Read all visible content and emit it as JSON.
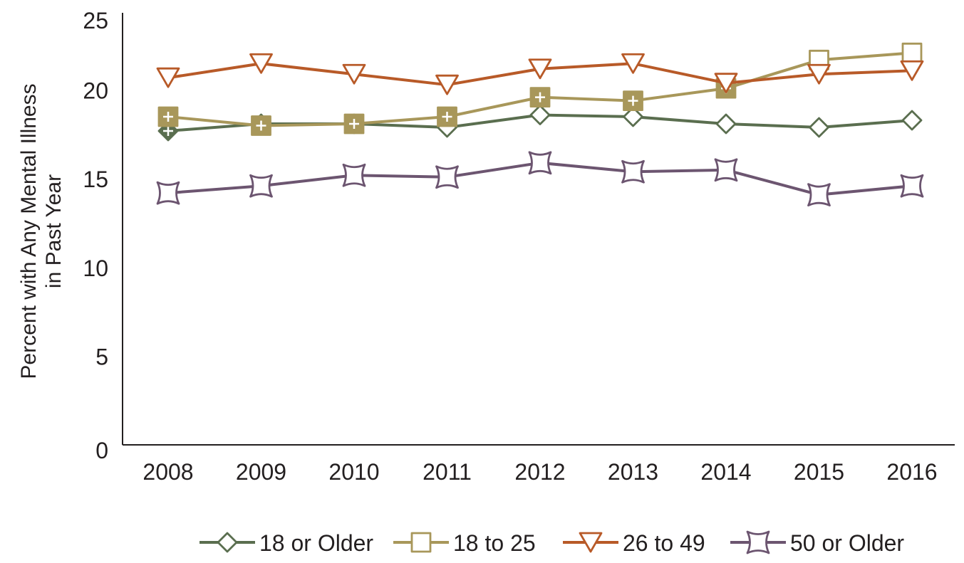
{
  "chart_data": {
    "type": "line",
    "title": "",
    "xlabel": "",
    "ylabel": [
      "Percent with Any Mental Illness",
      "in Past Year"
    ],
    "x": [
      "2008",
      "2009",
      "2010",
      "2011",
      "2012",
      "2013",
      "2014",
      "2015",
      "2016"
    ],
    "ylim": [
      0,
      25
    ],
    "yticks": [
      "0",
      "5",
      "10",
      "15",
      "20",
      "25"
    ],
    "grid": false,
    "legend_position": "bottom",
    "series": [
      {
        "name": "18 or Older",
        "color": "#5a6e4f",
        "marker": "diamond",
        "values": [
          17.7,
          18.1,
          18.1,
          17.9,
          18.6,
          18.5,
          18.1,
          17.9,
          18.3
        ],
        "significant": [
          true,
          false,
          false,
          false,
          false,
          false,
          false,
          false,
          false
        ]
      },
      {
        "name": "18 to 25",
        "color": "#a8975a",
        "marker": "square",
        "values": [
          18.5,
          18.0,
          18.1,
          18.5,
          19.6,
          19.4,
          20.1,
          21.7,
          22.1
        ],
        "significant": [
          true,
          true,
          true,
          true,
          true,
          true,
          true,
          false,
          false
        ]
      },
      {
        "name": "26 to 49",
        "color": "#b85a28",
        "marker": "triangle-down",
        "values": [
          20.7,
          21.5,
          20.9,
          20.3,
          21.2,
          21.5,
          20.4,
          20.9,
          21.1
        ],
        "significant": [
          false,
          false,
          false,
          false,
          false,
          false,
          false,
          false,
          false
        ]
      },
      {
        "name": "50 or Older",
        "color": "#6c5570",
        "marker": "concave-square",
        "values": [
          14.2,
          14.6,
          15.2,
          15.1,
          15.9,
          15.4,
          15.5,
          14.1,
          14.6
        ],
        "significant": [
          false,
          false,
          false,
          false,
          false,
          false,
          false,
          false,
          false
        ]
      }
    ]
  }
}
